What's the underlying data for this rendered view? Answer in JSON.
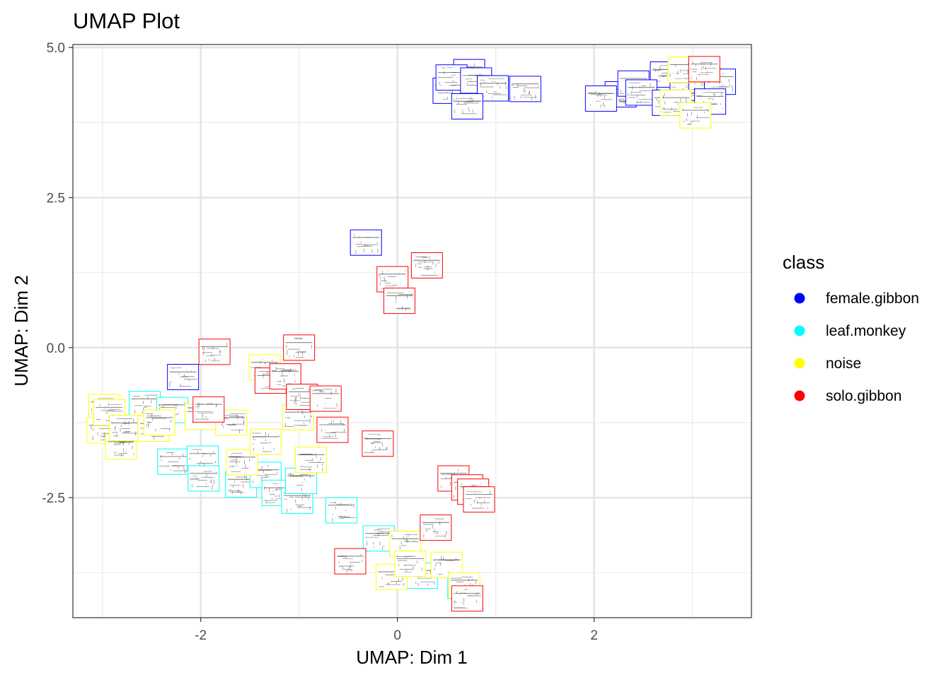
{
  "chart_data": {
    "type": "scatter",
    "title": "UMAP Plot",
    "xlabel": "UMAP: Dim 1",
    "ylabel": "UMAP: Dim 2",
    "xlim": [
      -3.3,
      3.6
    ],
    "ylim": [
      -4.5,
      5.05
    ],
    "x_ticks": [
      -2,
      0,
      2
    ],
    "x_tick_labels": [
      "-2",
      "0",
      "2"
    ],
    "y_ticks": [
      -2.5,
      0.0,
      2.5,
      5.0
    ],
    "y_tick_labels": [
      "-2.5",
      "0.0",
      "2.5",
      "5.0"
    ],
    "x_minor_ticks": [
      -3,
      -1,
      1,
      3
    ],
    "y_minor_ticks": [
      -3.75,
      -1.25,
      1.25,
      3.75
    ],
    "grid": true,
    "marker": "spectrogram thumbnail with colored border",
    "legend": {
      "title": "class",
      "position": "right",
      "entries": [
        {
          "name": "female.gibbon",
          "color": "#0000ff"
        },
        {
          "name": "leaf.monkey",
          "color": "#00ffff"
        },
        {
          "name": "noise",
          "color": "#ffff00"
        },
        {
          "name": "solo.gibbon",
          "color": "#ff0000"
        }
      ]
    },
    "series": [
      {
        "name": "female.gibbon",
        "color": "#0000ff",
        "points": [
          [
            0.73,
            4.59
          ],
          [
            0.52,
            4.28
          ],
          [
            0.55,
            4.5
          ],
          [
            0.8,
            4.45
          ],
          [
            0.97,
            4.32
          ],
          [
            1.3,
            4.31
          ],
          [
            0.71,
            4.02
          ],
          [
            -0.32,
            1.75
          ],
          [
            -2.18,
            -0.49
          ],
          [
            2.27,
            4.22
          ],
          [
            2.07,
            4.15
          ],
          [
            2.4,
            4.4
          ],
          [
            2.73,
            4.55
          ],
          [
            2.48,
            4.25
          ],
          [
            2.93,
            4.33
          ],
          [
            2.75,
            4.08
          ],
          [
            3.12,
            4.45
          ],
          [
            3.28,
            4.43
          ],
          [
            3.18,
            4.1
          ]
        ]
      },
      {
        "name": "leaf.monkey",
        "color": "#00ffff",
        "points": [
          [
            -2.57,
            -0.94
          ],
          [
            -2.29,
            -1.04
          ],
          [
            -2.28,
            -1.9
          ],
          [
            -1.98,
            -1.85
          ],
          [
            -1.97,
            -2.18
          ],
          [
            -1.59,
            -2.28
          ],
          [
            -1.34,
            -2.12
          ],
          [
            -1.22,
            -2.42
          ],
          [
            -1.02,
            -2.55
          ],
          [
            -0.98,
            -2.22
          ],
          [
            -0.57,
            -2.71
          ],
          [
            -0.19,
            -3.18
          ],
          [
            0.25,
            -3.8
          ],
          [
            0.67,
            -3.97
          ]
        ]
      },
      {
        "name": "noise",
        "color": "#ffff00",
        "points": [
          [
            -2.98,
            -0.99
          ],
          [
            -3.0,
            -1.38
          ],
          [
            -2.93,
            -1.08
          ],
          [
            -2.81,
            -1.65
          ],
          [
            -2.77,
            -1.34
          ],
          [
            -2.48,
            -1.35
          ],
          [
            -2.42,
            -1.25
          ],
          [
            -2.0,
            -1.15
          ],
          [
            -1.69,
            -1.25
          ],
          [
            -1.58,
            -1.91
          ],
          [
            -1.35,
            -0.33
          ],
          [
            -1.34,
            -1.57
          ],
          [
            -0.88,
            -1.87
          ],
          [
            -1.01,
            -1.16
          ],
          [
            -0.06,
            -3.82
          ],
          [
            0.08,
            -3.27
          ],
          [
            0.13,
            -3.6
          ],
          [
            0.5,
            -3.62
          ],
          [
            0.68,
            -3.96
          ],
          [
            2.91,
            4.63
          ],
          [
            2.83,
            4.08
          ],
          [
            3.03,
            3.87
          ]
        ]
      },
      {
        "name": "solo.gibbon",
        "color": "#ff0000",
        "points": [
          [
            -1.86,
            -0.07
          ],
          [
            -1.92,
            -1.03
          ],
          [
            -1.0,
            0.0
          ],
          [
            -1.29,
            -0.55
          ],
          [
            -1.14,
            -0.48
          ],
          [
            -0.97,
            -0.82
          ],
          [
            -0.73,
            -0.85
          ],
          [
            -0.66,
            -1.37
          ],
          [
            -0.2,
            -1.6
          ],
          [
            -0.05,
            1.14
          ],
          [
            0.02,
            0.78
          ],
          [
            0.3,
            1.37
          ],
          [
            0.39,
            -3.0
          ],
          [
            0.57,
            -2.18
          ],
          [
            0.71,
            -2.33
          ],
          [
            0.77,
            -2.4
          ],
          [
            0.83,
            -2.53
          ],
          [
            -0.48,
            -3.56
          ],
          [
            0.71,
            -4.18
          ],
          [
            3.12,
            4.64
          ]
        ]
      }
    ]
  }
}
